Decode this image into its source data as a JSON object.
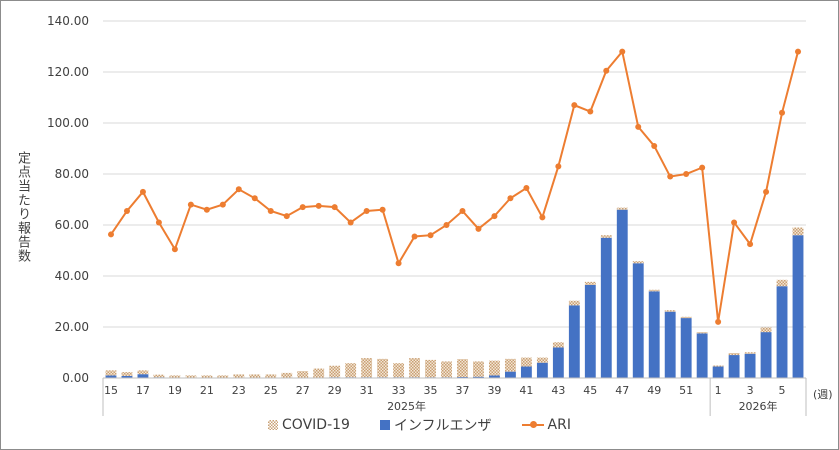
{
  "chart_data": {
    "type": "bar+line",
    "ylabel": "定点当たり報告数",
    "xlabel": "(週)",
    "ylim": [
      0,
      140
    ],
    "yticks": [
      "0.00",
      "20.00",
      "40.00",
      "60.00",
      "80.00",
      "100.00",
      "120.00",
      "140.00"
    ],
    "grid": true,
    "legend_position": "bottom",
    "groups": [
      {
        "label": "2025年",
        "weeks": [
          15,
          16,
          17,
          18,
          19,
          20,
          21,
          22,
          23,
          24,
          25,
          26,
          27,
          28,
          29,
          30,
          31,
          32,
          33,
          34,
          35,
          36,
          37,
          38,
          39,
          40,
          41,
          42,
          43,
          44,
          45,
          46,
          47,
          48,
          49,
          50,
          51,
          52
        ]
      },
      {
        "label": "2026年",
        "weeks": [
          1,
          2,
          3,
          4,
          5,
          6
        ]
      }
    ],
    "series": [
      {
        "name": "COVID-19",
        "type": "stacked-bar",
        "color": "#c9a074",
        "values": [
          2,
          1.5,
          1.5,
          1,
          0.8,
          0.8,
          0.8,
          0.8,
          1.2,
          1.2,
          1.2,
          1.8,
          2.5,
          3.5,
          4.5,
          5.5,
          7.5,
          7.2,
          5.5,
          7.5,
          6.8,
          6.2,
          7,
          6,
          5.8,
          5,
          3.5,
          2,
          2,
          1.8,
          1.2,
          1,
          0.8,
          0.8,
          0.6,
          0.6,
          0.5,
          0.5,
          0.4,
          0.8,
          0.6,
          1.8,
          2.5,
          3
        ]
      },
      {
        "name": "インフルエンザ",
        "type": "stacked-bar",
        "color": "#4472c4",
        "values": [
          1,
          0.8,
          1.5,
          0.3,
          0.2,
          0.2,
          0.2,
          0.2,
          0.2,
          0.2,
          0.2,
          0.2,
          0.2,
          0.2,
          0.3,
          0.3,
          0.3,
          0.3,
          0.3,
          0.3,
          0.3,
          0.3,
          0.4,
          0.5,
          1,
          2.5,
          4.5,
          6,
          12,
          28.5,
          36.5,
          55,
          66,
          45,
          34,
          26,
          23.5,
          17.5,
          4.5,
          9,
          9.5,
          18,
          36,
          56
        ]
      },
      {
        "name": "ARI",
        "type": "line",
        "color": "#ed7d31",
        "values": [
          56.3,
          65.5,
          73,
          61,
          50.5,
          68,
          66,
          68,
          74,
          70.5,
          65.5,
          63.5,
          67,
          67.5,
          67,
          61,
          65.5,
          66,
          45,
          55.5,
          56,
          60,
          65.5,
          58.5,
          63.5,
          70.5,
          74.5,
          63,
          83,
          107,
          104.5,
          120.5,
          128,
          98.5,
          91,
          79,
          80,
          82.5,
          22,
          61,
          52.5,
          73,
          104,
          128
        ]
      }
    ]
  }
}
